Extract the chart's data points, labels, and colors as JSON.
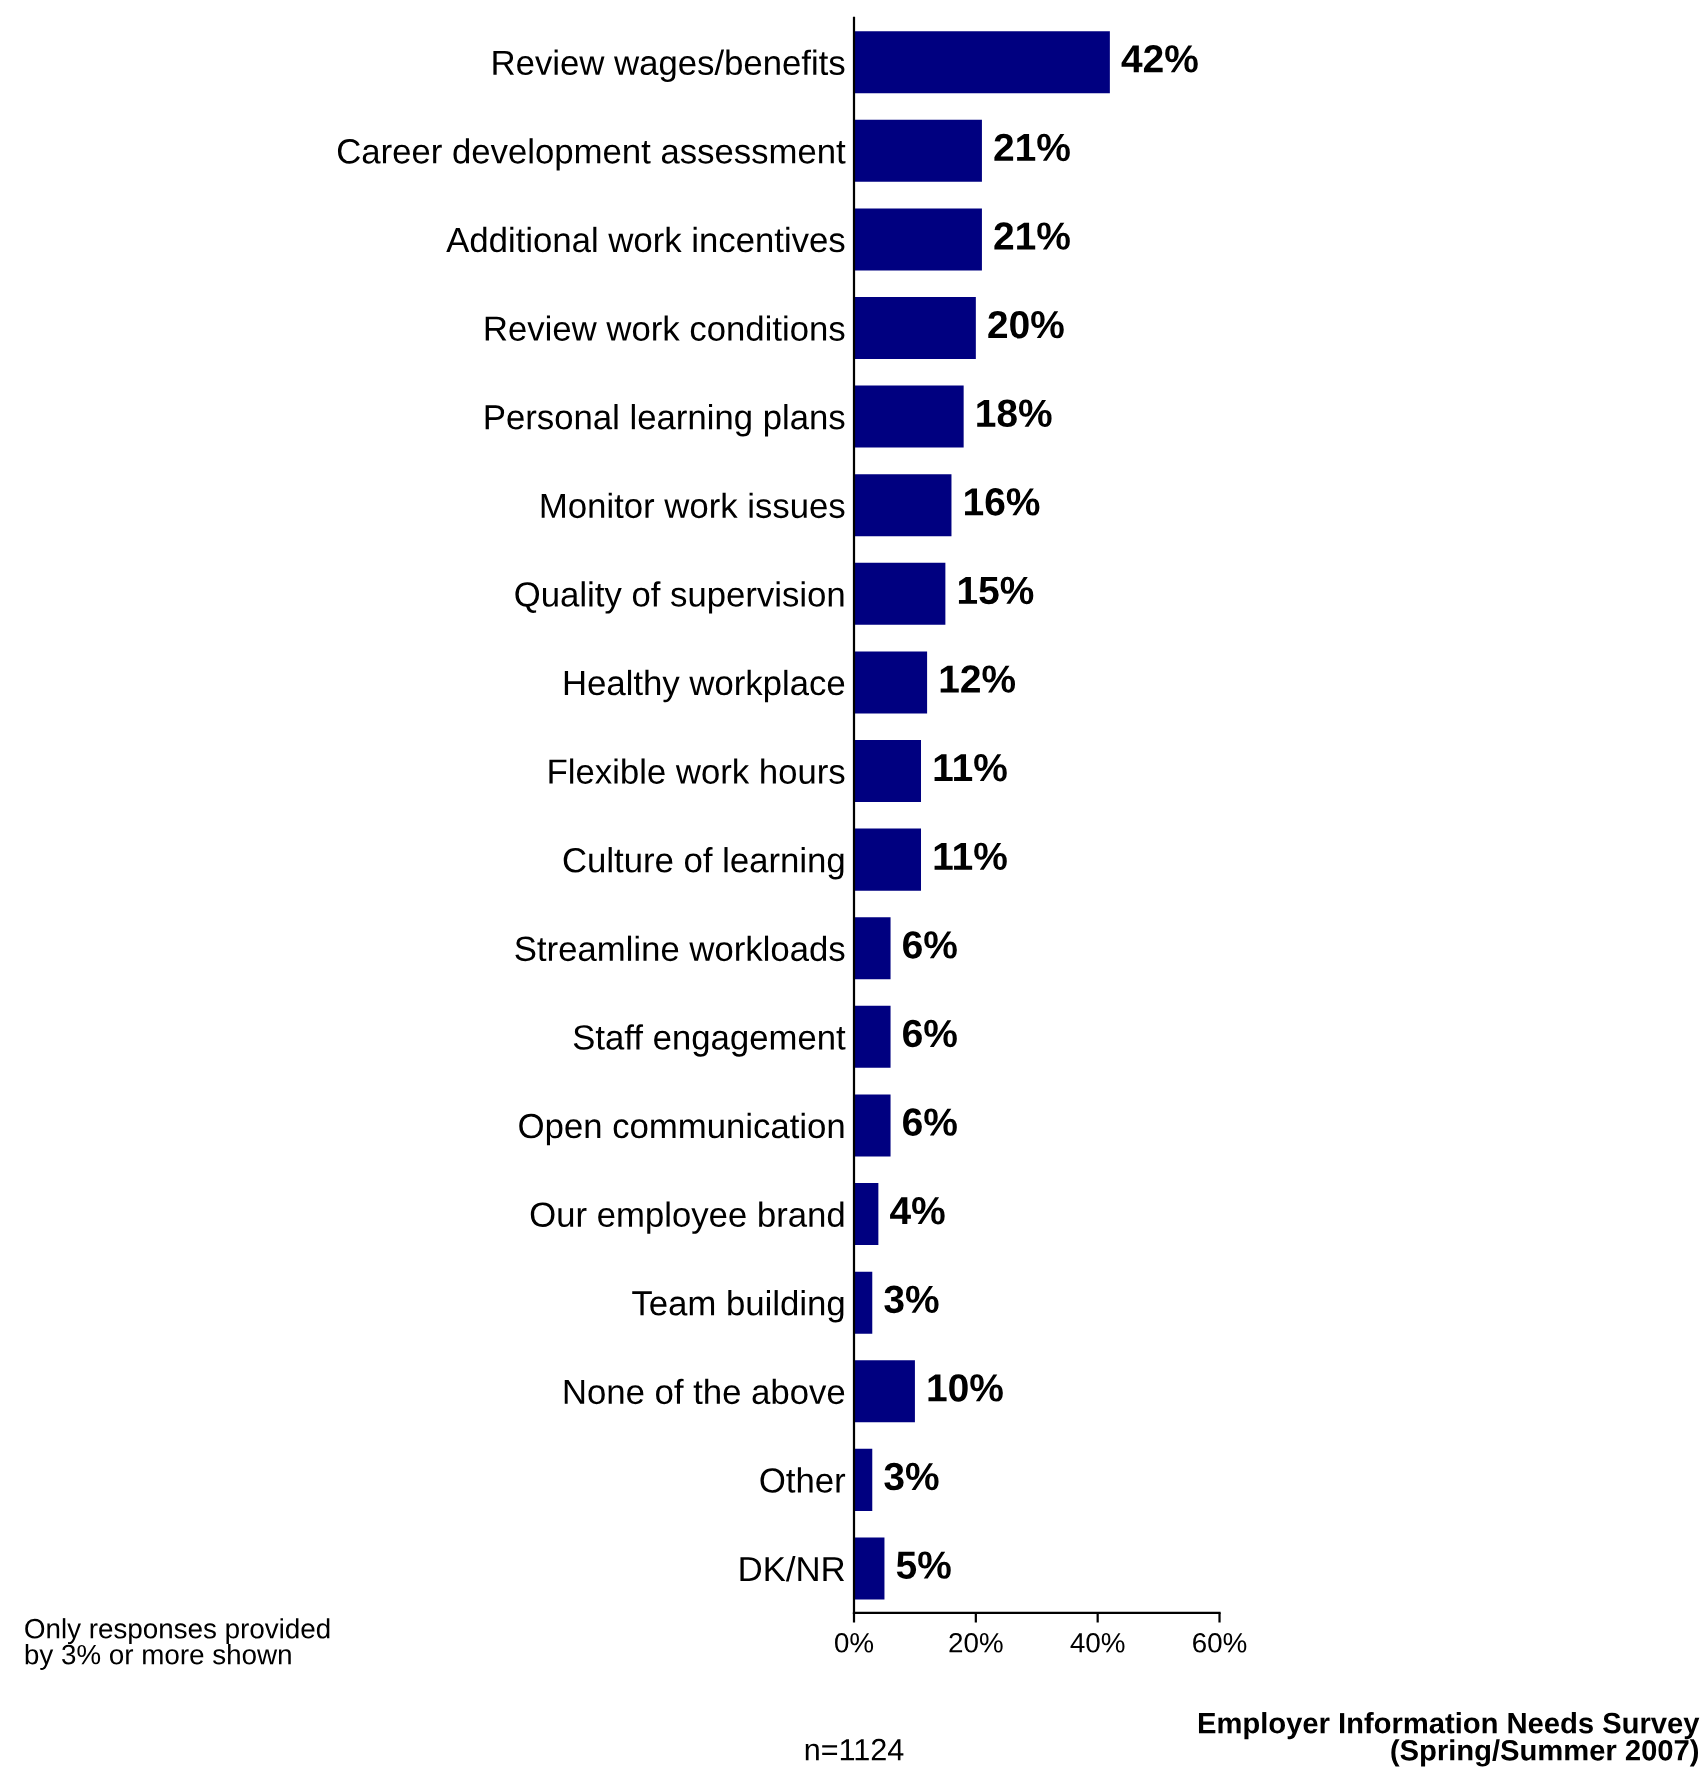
{
  "chart_data": {
    "type": "bar",
    "orientation": "horizontal",
    "categories": [
      "Review wages/benefits",
      "Career development assessment",
      "Additional work incentives",
      "Review work conditions",
      "Personal learning plans",
      "Monitor work issues",
      "Quality of supervision",
      "Healthy workplace",
      "Flexible work hours",
      "Culture of learning",
      "Streamline workloads",
      "Staff engagement",
      "Open communication",
      "Our employee brand",
      "Team building",
      "None of the above",
      "Other",
      "DK/NR"
    ],
    "values": [
      42,
      21,
      21,
      20,
      18,
      16,
      15,
      12,
      11,
      11,
      6,
      6,
      6,
      4,
      3,
      10,
      3,
      5
    ],
    "value_labels": [
      "42%",
      "21%",
      "21%",
      "20%",
      "18%",
      "16%",
      "15%",
      "12%",
      "11%",
      "11%",
      "6%",
      "6%",
      "6%",
      "4%",
      "3%",
      "10%",
      "3%",
      "5%"
    ],
    "color": "#000080",
    "xlim": [
      0,
      60
    ],
    "xticks": [
      {
        "value": 0,
        "label": "0%"
      },
      {
        "value": 20,
        "label": "20%"
      },
      {
        "value": 40,
        "label": "40%"
      },
      {
        "value": 60,
        "label": "60%"
      }
    ],
    "grid": false,
    "annotations": [
      "Only responses provided\nby 3% or more shown",
      "n=1124",
      "Employer Information Needs Survey\n(Spring/Summer 2007)"
    ]
  }
}
